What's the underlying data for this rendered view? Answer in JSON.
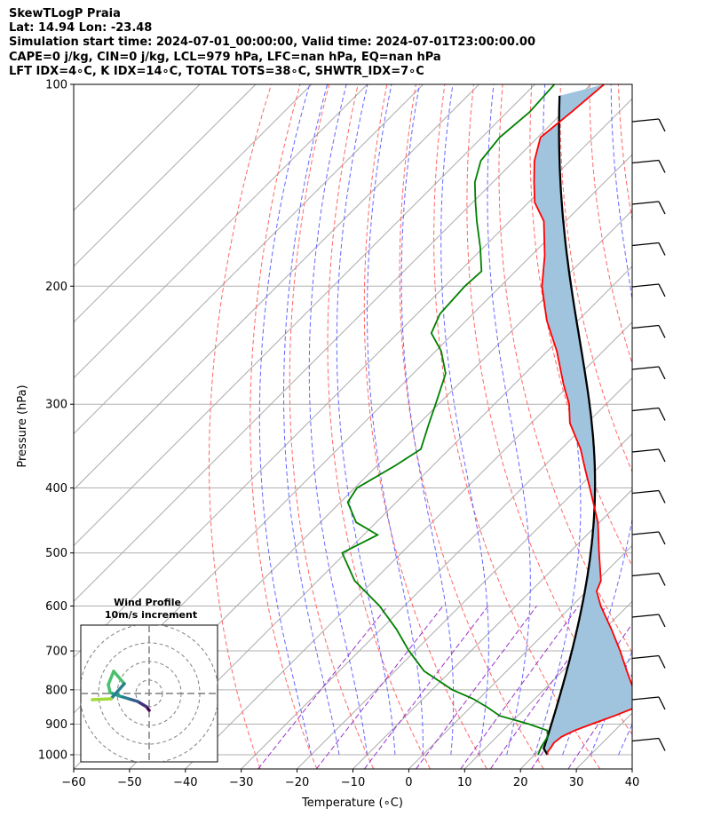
{
  "header": {
    "line1": "SkewTLogP Praia",
    "line2": "Lat: 14.94   Lon: -23.48",
    "line3": "Simulation start time: 2024-07-01_00:00:00, Valid time: 2024-07-01T23:00:00.00",
    "line4": "CAPE=0 j/kg, CIN=0 j/kg, LCL=979 hPa, LFC=nan hPa, EQ=nan hPa",
    "line5": "LFT IDX=4∘C, K IDX=14∘C, TOTAL TOTS=38∘C, SHWTR_IDX=7∘C"
  },
  "chart_data": {
    "type": "skewt",
    "xlabel": "Temperature (∘C)",
    "ylabel": "Pressure (hPa)",
    "xlim": [
      -60,
      40
    ],
    "ylim": [
      1050,
      100
    ],
    "xticks": [
      -60,
      -50,
      -40,
      -30,
      -20,
      -10,
      0,
      10,
      20,
      30,
      40
    ],
    "xtick_labels": [
      "−60",
      "−50",
      "−40",
      "−30",
      "−20",
      "−10",
      "0",
      "10",
      "20",
      "30",
      "40"
    ],
    "yticks": [
      1000,
      900,
      800,
      700,
      600,
      500,
      400,
      300,
      200,
      100
    ],
    "ytick_labels": [
      "1000",
      "900",
      "800",
      "700",
      "600",
      "500",
      "400",
      "300",
      "200",
      "100"
    ],
    "colors": {
      "temperature": "#ff0000",
      "dewpoint": "#008000",
      "parcel": "#000000",
      "cape_fill": "#a0c4de",
      "dry_adiabat": "#ff6666",
      "moist_adiabat": "#6666ff",
      "mixing_ratio": "#9933cc",
      "isotherm": "#aaaaaa",
      "grid": "#b0b0b0"
    },
    "temperature": {
      "p": [
        1000,
        990,
        975,
        960,
        940,
        920,
        900,
        875,
        850,
        825,
        800,
        750,
        700,
        650,
        600,
        570,
        550,
        500,
        450,
        400,
        375,
        350,
        320,
        300,
        280,
        250,
        225,
        200,
        180,
        160,
        150,
        140,
        130,
        120,
        110,
        100
      ],
      "t": [
        22.3,
        21.8,
        21.6,
        21.3,
        21.6,
        22.8,
        24.7,
        27.3,
        29.6,
        28.4,
        26.1,
        21.5,
        16.7,
        11.3,
        5.2,
        1.8,
        0.7,
        -4.6,
        -10.3,
        -17.9,
        -22.1,
        -26.5,
        -33.1,
        -36.6,
        -41.2,
        -48.3,
        -55.6,
        -62.6,
        -67.6,
        -73.9,
        -78.9,
        -82.6,
        -86.4,
        -89.5,
        -88.5,
        -87.6
      ]
    },
    "dewpoint": {
      "p": [
        1000,
        990,
        975,
        960,
        940,
        920,
        900,
        875,
        850,
        825,
        800,
        750,
        700,
        650,
        600,
        550,
        500,
        470,
        450,
        420,
        400,
        370,
        350,
        320,
        300,
        270,
        250,
        235,
        220,
        200,
        190,
        175,
        160,
        150,
        140,
        130,
        120,
        110,
        100
      ],
      "t": [
        20.6,
        20.3,
        19.8,
        19.5,
        19.1,
        17.9,
        13.5,
        6.8,
        3.1,
        -1.1,
        -6.4,
        -14.8,
        -21.1,
        -27.2,
        -34.4,
        -43.4,
        -50.6,
        -47.5,
        -53.6,
        -58.7,
        -59.6,
        -56.7,
        -55.1,
        -58.3,
        -60.5,
        -64.2,
        -69.0,
        -74.0,
        -75.9,
        -76.4,
        -76.1,
        -80.6,
        -85.9,
        -89.5,
        -93.2,
        -96.0,
        -96.8,
        -96.0,
        -96.5
      ]
    },
    "parcel_start": {
      "p": 1000,
      "t": 22.3
    },
    "wind_barbs_label": "",
    "inset": {
      "title_line1": "Wind Profile",
      "title_line2": "10m/s increment"
    }
  }
}
